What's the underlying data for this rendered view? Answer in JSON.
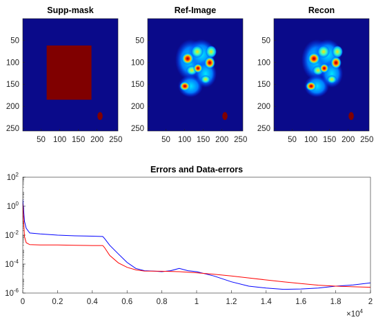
{
  "colors": {
    "mask_background": "#0a0a8a",
    "mask_region": "#800000",
    "image_background": "#0a0a8a",
    "error_line": "#0000ff",
    "data_error_line": "#ff0000"
  },
  "chart_data": [
    {
      "type": "heatmap",
      "title": "Supp-mask",
      "xlim": [
        1,
        256
      ],
      "ylim": [
        1,
        256
      ],
      "xticks": [
        "50",
        "100",
        "150",
        "200",
        "250"
      ],
      "yticks": [
        "50",
        "100",
        "150",
        "200",
        "250"
      ],
      "support_rect": {
        "x_from": 65,
        "x_to": 185,
        "y_from": 62,
        "y_to": 185
      },
      "blob": {
        "cx": 208,
        "cy": 222,
        "rx": 7,
        "ry": 9
      }
    },
    {
      "type": "heatmap",
      "title": "Ref-Image",
      "xlim": [
        1,
        256
      ],
      "ylim": [
        1,
        256
      ],
      "xticks": [
        "50",
        "100",
        "150",
        "200",
        "250"
      ],
      "yticks": [
        "50",
        "100",
        "150",
        "200",
        "250"
      ],
      "blob": {
        "cx": 208,
        "cy": 222,
        "rx": 7,
        "ry": 9
      }
    },
    {
      "type": "heatmap",
      "title": "Recon",
      "xlim": [
        1,
        256
      ],
      "ylim": [
        1,
        256
      ],
      "xticks": [
        "50",
        "100",
        "150",
        "200",
        "250"
      ],
      "yticks": [
        "50",
        "100",
        "150",
        "200",
        "250"
      ],
      "blob": {
        "cx": 208,
        "cy": 222,
        "rx": 7,
        "ry": 9
      }
    },
    {
      "type": "line",
      "title": "Errors and Data-errors",
      "xlim": [
        0,
        20000
      ],
      "ylim": [
        1e-06,
        100
      ],
      "yscale": "log",
      "xticks": [
        "0",
        "0.2",
        "0.4",
        "0.6",
        "0.8",
        "1",
        "1.2",
        "1.4",
        "1.6",
        "1.8",
        "2"
      ],
      "xtick_values": [
        0,
        2000,
        4000,
        6000,
        8000,
        10000,
        12000,
        14000,
        16000,
        18000,
        20000
      ],
      "x_multiplier": {
        "base": "×10",
        "exponent": "4"
      },
      "yticks": [
        {
          "base": "10",
          "exp": "-6",
          "value": 1e-06
        },
        {
          "base": "10",
          "exp": "-4",
          "value": 0.0001
        },
        {
          "base": "10",
          "exp": "-2",
          "value": 0.01
        },
        {
          "base": "10",
          "exp": "0",
          "value": 1
        },
        {
          "base": "10",
          "exp": "2",
          "value": 100
        }
      ],
      "series": [
        {
          "color": "#0000ff",
          "x": [
            0,
            50,
            100,
            200,
            400,
            1000,
            2000,
            3000,
            4000,
            4600,
            4700,
            5000,
            5500,
            6000,
            6500,
            7000,
            7500,
            8000,
            8500,
            9000,
            9500,
            10000,
            11000,
            12000,
            13000,
            14000,
            15000,
            16000,
            17000,
            18000,
            19000,
            20000
          ],
          "y": [
            3,
            0.5,
            0.09,
            0.03,
            0.014,
            0.012,
            0.01,
            0.009,
            0.0085,
            0.008,
            0.006,
            0.002,
            0.0005,
            0.00013,
            5e-05,
            3.5e-05,
            3.3e-05,
            3e-05,
            3.5e-05,
            5e-05,
            3.5e-05,
            3e-05,
            1.5e-05,
            6e-06,
            3e-06,
            2.2e-06,
            1.8e-06,
            1.9e-06,
            2.2e-06,
            3e-06,
            3.6e-06,
            5e-06
          ]
        },
        {
          "color": "#ff0000",
          "x": [
            0,
            50,
            100,
            200,
            400,
            1000,
            2000,
            3000,
            4000,
            4600,
            4700,
            5000,
            5500,
            6000,
            6500,
            7000,
            8000,
            9000,
            10000,
            11000,
            12000,
            13000,
            14000,
            15000,
            16000,
            17000,
            18000,
            19000,
            20000
          ],
          "y": [
            1.5,
            0.08,
            0.008,
            0.003,
            0.0022,
            0.0021,
            0.0021,
            0.002,
            0.0019,
            0.0019,
            0.0014,
            0.0004,
            0.00012,
            6e-05,
            4e-05,
            3.3e-05,
            3.2e-05,
            3e-05,
            2.5e-05,
            2e-05,
            1.5e-05,
            1.1e-05,
            8e-06,
            6e-06,
            4.5e-06,
            3.5e-06,
            3e-06,
            2.7e-06,
            2.5e-06
          ]
        }
      ]
    }
  ]
}
